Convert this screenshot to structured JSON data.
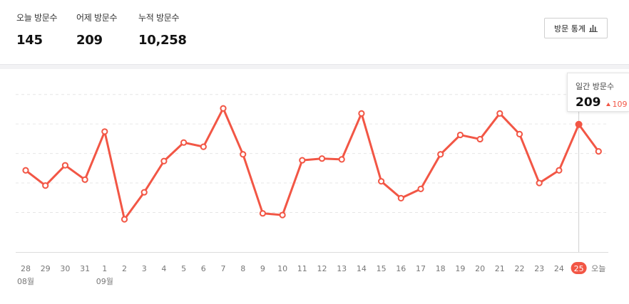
{
  "stats": {
    "today_label": "오늘 방문수",
    "today_value": "145",
    "yesterday_label": "어제 방문수",
    "yesterday_value": "209",
    "total_label": "누적 방문수",
    "total_value": "10,258"
  },
  "toolbar": {
    "stats_button_label": "방문 통계",
    "stats_button_icon": "bar-chart-icon"
  },
  "tooltip": {
    "title": "일간 방문수",
    "value": "209",
    "diff": "109",
    "diff_direction": "up"
  },
  "colors": {
    "accent": "#f25645",
    "grid": "#e6e6e6"
  },
  "chart_data": {
    "type": "line",
    "categories": [
      "28",
      "29",
      "30",
      "31",
      "1",
      "2",
      "3",
      "4",
      "5",
      "6",
      "7",
      "8",
      "9",
      "10",
      "11",
      "12",
      "13",
      "14",
      "15",
      "16",
      "17",
      "18",
      "19",
      "20",
      "21",
      "22",
      "23",
      "24",
      "25",
      "오늘"
    ],
    "month_labels": [
      {
        "index": 0,
        "text": "08월"
      },
      {
        "index": 4,
        "text": "09월"
      }
    ],
    "values": [
      100,
      64,
      112,
      78,
      192,
      -16,
      48,
      122,
      166,
      156,
      247,
      138,
      -2,
      -6,
      124,
      128,
      126,
      235,
      74,
      34,
      56,
      138,
      184,
      174,
      235,
      186,
      70,
      100,
      209,
      145
    ],
    "highlight_index": 28,
    "ylim": [
      -65,
      320
    ],
    "grid": true,
    "gridlines": [
      0,
      70,
      140,
      210,
      280
    ]
  }
}
